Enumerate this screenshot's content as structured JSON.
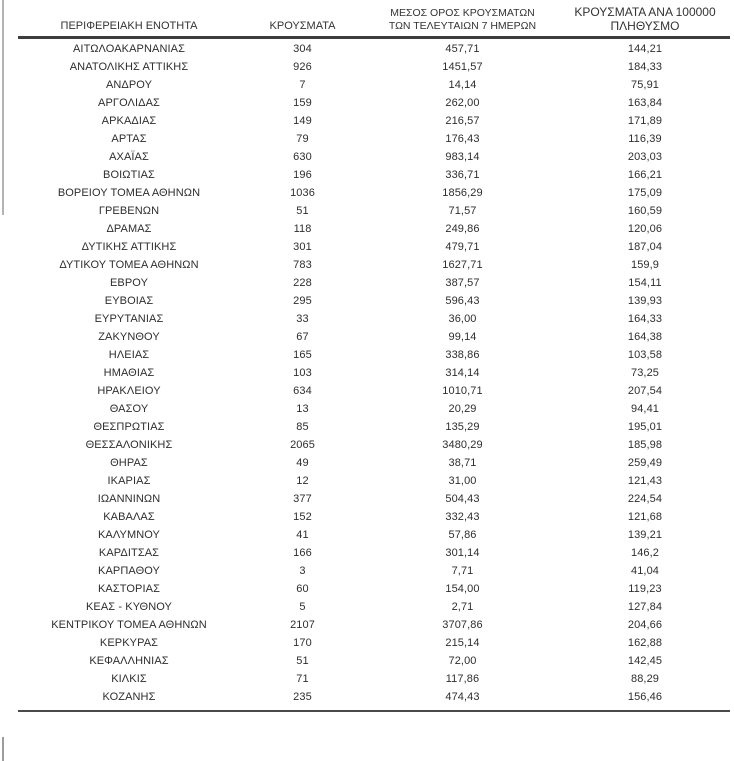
{
  "colors": {
    "background": "#ffffff",
    "text": "#2e2e2e",
    "header_rule": "#3d3d3d",
    "bottom_rule": "#4a4a4a",
    "page_edge_line": "#b4b4b4"
  },
  "table": {
    "columns": [
      {
        "key": "region",
        "line1": "ΠΕΡΙΦΕΡΕΙΑΚΗ ΕΝΟΤΗΤΑ",
        "line2": ""
      },
      {
        "key": "cases",
        "line1": "ΚΡΟΥΣΜΑΤΑ",
        "line2": ""
      },
      {
        "key": "avg7",
        "line1": "ΜΕΣΟΣ ΟΡΟΣ ΚΡΟΥΣΜΑΤΩΝ",
        "line2": "ΤΩΝ ΤΕΛΕΥΤΑΙΩΝ 7 ΗΜΕΡΩΝ"
      },
      {
        "key": "per100k",
        "line1": "ΚΡΟΥΣΜΑΤΑ ΑΝΑ 100000",
        "line2": "ΠΛΗΘΥΣΜΟ"
      }
    ],
    "rows": [
      [
        "ΑΙΤΩΛΟΑΚΑΡΝΑΝΙΑΣ",
        "304",
        "457,71",
        "144,21"
      ],
      [
        "ΑΝΑΤΟΛΙΚΗΣ ΑΤΤΙΚΗΣ",
        "926",
        "1451,57",
        "184,33"
      ],
      [
        "ΑΝΔΡΟΥ",
        "7",
        "14,14",
        "75,91"
      ],
      [
        "ΑΡΓΟΛΙΔΑΣ",
        "159",
        "262,00",
        "163,84"
      ],
      [
        "ΑΡΚΑΔΙΑΣ",
        "149",
        "216,57",
        "171,89"
      ],
      [
        "ΑΡΤΑΣ",
        "79",
        "176,43",
        "116,39"
      ],
      [
        "ΑΧΑΪΑΣ",
        "630",
        "983,14",
        "203,03"
      ],
      [
        "ΒΟΙΩΤΙΑΣ",
        "196",
        "336,71",
        "166,21"
      ],
      [
        "ΒΟΡΕΙΟΥ ΤΟΜΕΑ ΑΘΗΝΩΝ",
        "1036",
        "1856,29",
        "175,09"
      ],
      [
        "ΓΡΕΒΕΝΩΝ",
        "51",
        "71,57",
        "160,59"
      ],
      [
        "ΔΡΑΜΑΣ",
        "118",
        "249,86",
        "120,06"
      ],
      [
        "ΔΥΤΙΚΗΣ ΑΤΤΙΚΗΣ",
        "301",
        "479,71",
        "187,04"
      ],
      [
        "ΔΥΤΙΚΟΥ ΤΟΜΕΑ ΑΘΗΝΩΝ",
        "783",
        "1627,71",
        "159,9"
      ],
      [
        "ΕΒΡΟΥ",
        "228",
        "387,57",
        "154,11"
      ],
      [
        "ΕΥΒΟΙΑΣ",
        "295",
        "596,43",
        "139,93"
      ],
      [
        "ΕΥΡΥΤΑΝΙΑΣ",
        "33",
        "36,00",
        "164,33"
      ],
      [
        "ΖΑΚΥΝΘΟΥ",
        "67",
        "99,14",
        "164,38"
      ],
      [
        "ΗΛΕΙΑΣ",
        "165",
        "338,86",
        "103,58"
      ],
      [
        "ΗΜΑΘΙΑΣ",
        "103",
        "314,14",
        "73,25"
      ],
      [
        "ΗΡΑΚΛΕΙΟΥ",
        "634",
        "1010,71",
        "207,54"
      ],
      [
        "ΘΑΣΟΥ",
        "13",
        "20,29",
        "94,41"
      ],
      [
        "ΘΕΣΠΡΩΤΙΑΣ",
        "85",
        "135,29",
        "195,01"
      ],
      [
        "ΘΕΣΣΑΛΟΝΙΚΗΣ",
        "2065",
        "3480,29",
        "185,98"
      ],
      [
        "ΘΗΡΑΣ",
        "49",
        "38,71",
        "259,49"
      ],
      [
        "ΙΚΑΡΙΑΣ",
        "12",
        "31,00",
        "121,43"
      ],
      [
        "ΙΩΑΝΝΙΝΩΝ",
        "377",
        "504,43",
        "224,54"
      ],
      [
        "ΚΑΒΑΛΑΣ",
        "152",
        "332,43",
        "121,68"
      ],
      [
        "ΚΑΛΥΜΝΟΥ",
        "41",
        "57,86",
        "139,21"
      ],
      [
        "ΚΑΡΔΙΤΣΑΣ",
        "166",
        "301,14",
        "146,2"
      ],
      [
        "ΚΑΡΠΑΘΟΥ",
        "3",
        "7,71",
        "41,04"
      ],
      [
        "ΚΑΣΤΟΡΙΑΣ",
        "60",
        "154,00",
        "119,23"
      ],
      [
        "ΚΕΑΣ - ΚΥΘΝΟΥ",
        "5",
        "2,71",
        "127,84"
      ],
      [
        "ΚΕΝΤΡΙΚΟΥ ΤΟΜΕΑ ΑΘΗΝΩΝ",
        "2107",
        "3707,86",
        "204,66"
      ],
      [
        "ΚΕΡΚΥΡΑΣ",
        "170",
        "215,14",
        "162,88"
      ],
      [
        "ΚΕΦΑΛΛΗΝΙΑΣ",
        "51",
        "72,00",
        "142,45"
      ],
      [
        "ΚΙΛΚΙΣ",
        "71",
        "117,86",
        "88,29"
      ],
      [
        "ΚΟΖΑΝΗΣ",
        "235",
        "474,43",
        "156,46"
      ]
    ]
  }
}
